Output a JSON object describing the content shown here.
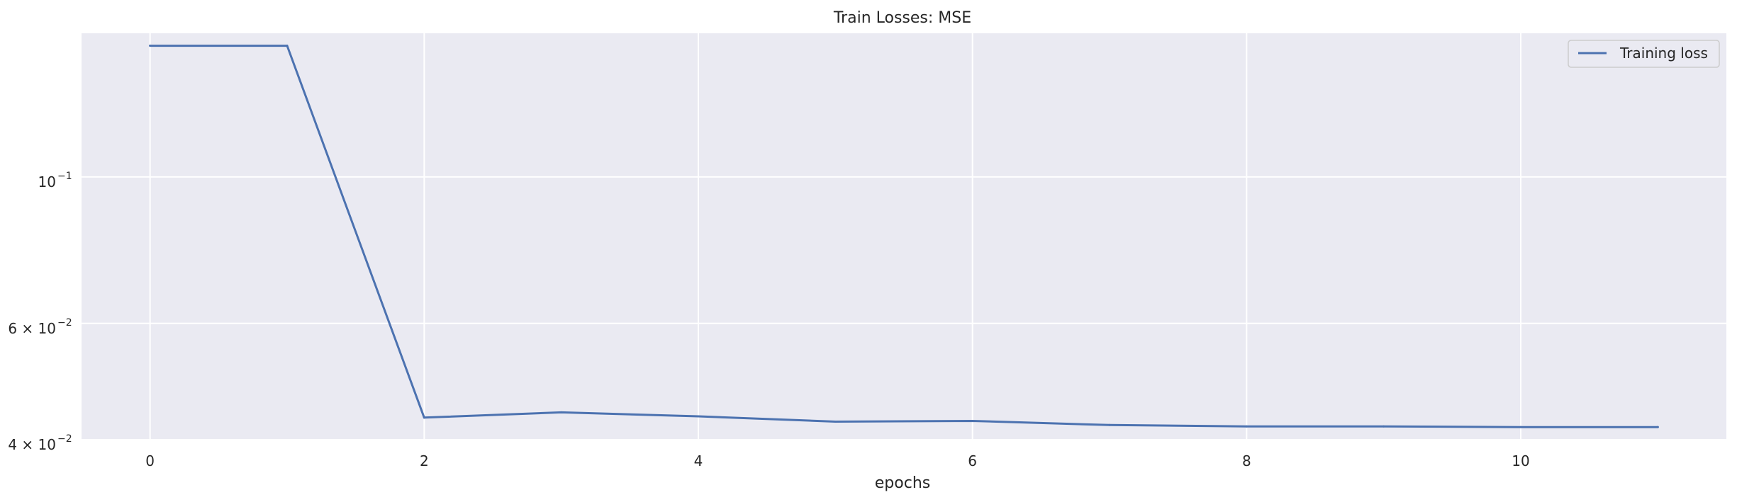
{
  "chart_data": {
    "type": "line",
    "title": "Train Losses:  MSE",
    "xlabel": "epochs",
    "ylabel": "",
    "yscale": "log",
    "xlim": [
      -0.5,
      11.5
    ],
    "ylim": [
      0.04,
      0.165
    ],
    "grid": true,
    "legend_position": "top-right",
    "background_color": "#eaeaf2",
    "grid_color": "#ffffff",
    "x_ticks": [
      0,
      2,
      4,
      6,
      8,
      10
    ],
    "x_tick_labels": [
      "0",
      "2",
      "4",
      "6",
      "8",
      "10"
    ],
    "y_ticks": [
      {
        "value": 0.1,
        "base": "10",
        "exp": "−1"
      },
      {
        "value": 0.06,
        "base": "6 × 10",
        "exp": "−2"
      },
      {
        "value": 0.04,
        "base": "4 × 10",
        "exp": "−2"
      }
    ],
    "x": [
      0,
      1,
      2,
      3,
      4,
      5,
      6,
      7,
      8,
      9,
      10,
      11
    ],
    "series": [
      {
        "name": "Training loss",
        "color": "#4c72b0",
        "values": [
          0.158,
          0.158,
          0.0432,
          0.044,
          0.0434,
          0.0426,
          0.0427,
          0.0421,
          0.0419,
          0.0419,
          0.0418,
          0.0418
        ]
      }
    ]
  }
}
